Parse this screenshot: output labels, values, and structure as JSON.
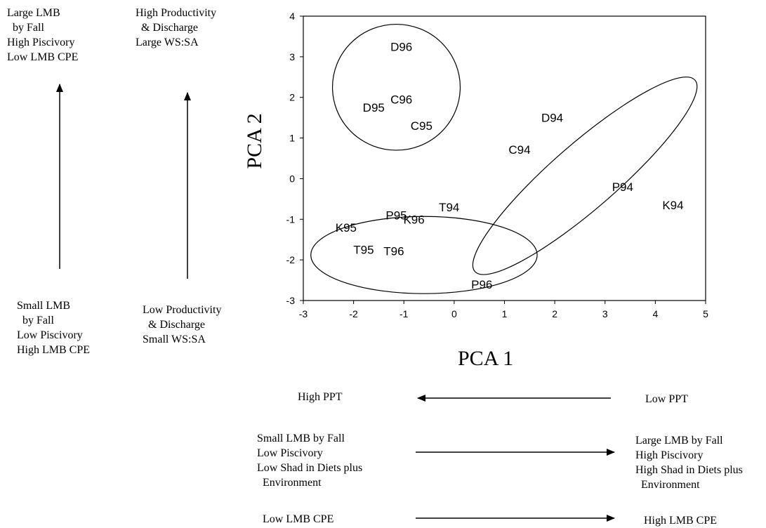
{
  "left_notes": {
    "col1_top": "Large LMB\n  by Fall\nHigh Piscivory\nLow LMB CPE",
    "col1_bottom": "Small LMB\n  by Fall\nLow Piscivory\nHigh LMB CPE",
    "col2_top": "High Productivity\n  & Discharge\nLarge WS:SA",
    "col2_bottom": "Low Productivity\n  & Discharge\nSmall WS:SA"
  },
  "bottom_notes": {
    "row1_left": "High PPT",
    "row1_right": "Low PPT",
    "row2_left": "Small LMB by Fall\nLow Piscivory\nLow Shad in Diets plus\n  Environment",
    "row2_right": "Large LMB by Fall\nHigh Piscivory\nHigh Shad in Diets plus\n  Environment",
    "row3_left": "Low LMB CPE",
    "row3_right": "High LMB CPE"
  },
  "chart_data": {
    "type": "scatter",
    "title": "",
    "xlabel": "PCA 1",
    "ylabel": "PCA 2",
    "xlim": [
      -3,
      5
    ],
    "ylim": [
      -3,
      4
    ],
    "x_ticks": [
      -3,
      -2,
      -1,
      0,
      1,
      2,
      3,
      4,
      5
    ],
    "y_ticks": [
      -3,
      -2,
      -1,
      0,
      1,
      2,
      3,
      4
    ],
    "grid": false,
    "points": [
      {
        "label": "D96",
        "x": -1.05,
        "y": 3.25
      },
      {
        "label": "C96",
        "x": -1.05,
        "y": 1.95
      },
      {
        "label": "D95",
        "x": -1.6,
        "y": 1.75
      },
      {
        "label": "C95",
        "x": -0.65,
        "y": 1.3
      },
      {
        "label": "D94",
        "x": 1.95,
        "y": 1.5
      },
      {
        "label": "C94",
        "x": 1.3,
        "y": 0.72
      },
      {
        "label": "P94",
        "x": 3.35,
        "y": -0.2
      },
      {
        "label": "K94",
        "x": 4.35,
        "y": -0.65
      },
      {
        "label": "T94",
        "x": -0.1,
        "y": -0.7
      },
      {
        "label": "P95",
        "x": -1.15,
        "y": -0.9
      },
      {
        "label": "K96",
        "x": -0.8,
        "y": -1.0
      },
      {
        "label": "K95",
        "x": -2.15,
        "y": -1.2
      },
      {
        "label": "T95",
        "x": -1.8,
        "y": -1.75
      },
      {
        "label": "T96",
        "x": -1.2,
        "y": -1.78
      },
      {
        "label": "P96",
        "x": 0.55,
        "y": -2.6
      }
    ],
    "groups": [
      {
        "cx": -1.15,
        "cy": 2.25,
        "rx": 1.27,
        "ry": 1.55,
        "rotation": 0
      },
      {
        "cx": 2.6,
        "cy": 0.07,
        "rx": 2.9,
        "ry": 0.8,
        "rotation": 41
      },
      {
        "cx": -0.6,
        "cy": -1.88,
        "rx": 2.25,
        "ry": 0.95,
        "rotation": 0
      }
    ]
  }
}
